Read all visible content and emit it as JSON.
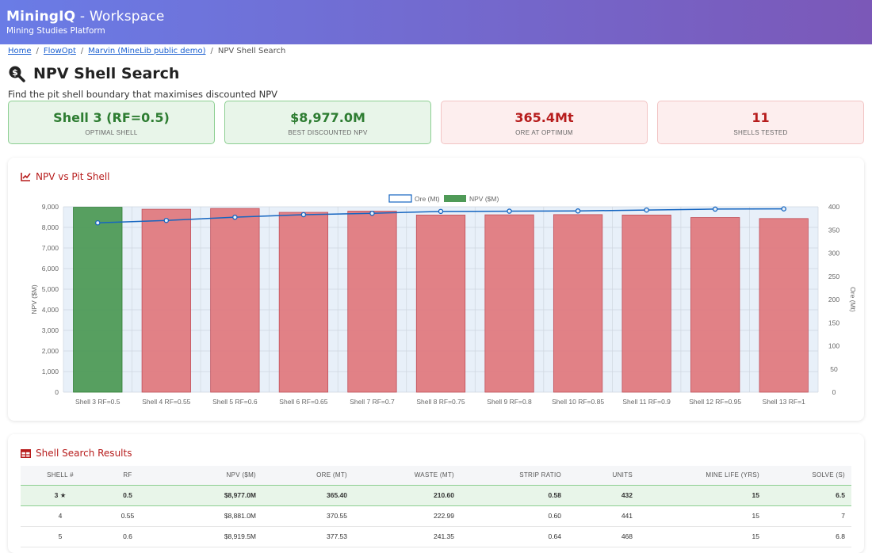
{
  "app": {
    "title_bold": "MiningIQ",
    "title_rest": " - Workspace",
    "subtitle": "Mining Studies Platform"
  },
  "breadcrumb": [
    "Home",
    "FlowOpt",
    "Marvin (MineLib public demo)",
    "NPV Shell Search"
  ],
  "page": {
    "title": "NPV Shell Search",
    "subtitle": "Find the pit shell boundary that maximises discounted NPV",
    "icon": "search-dollar-icon"
  },
  "kpis": [
    {
      "value": "Shell 3 (RF=0.5)",
      "label": "OPTIMAL SHELL",
      "tone": "green"
    },
    {
      "value": "$8,977.0M",
      "label": "BEST DISCOUNTED NPV",
      "tone": "green"
    },
    {
      "value": "365.4Mt",
      "label": "ORE AT OPTIMUM",
      "tone": "red"
    },
    {
      "value": "11",
      "label": "SHELLS TESTED",
      "tone": "red"
    }
  ],
  "chart_card": {
    "title": "NPV vs Pit Shell",
    "icon": "line-chart-icon"
  },
  "chart_data": {
    "type": "bar",
    "categories": [
      "Shell 3 RF=0.5",
      "Shell 4 RF=0.55",
      "Shell 5 RF=0.6",
      "Shell 6 RF=0.65",
      "Shell 7 RF=0.7",
      "Shell 8 RF=0.75",
      "Shell 9 RF=0.8",
      "Shell 10 RF=0.85",
      "Shell 11 RF=0.9",
      "Shell 12 RF=0.95",
      "Shell 13 RF=1"
    ],
    "series": [
      {
        "name": "NPV ($M)",
        "type": "bar",
        "axis": "left",
        "values": [
          8977.0,
          8881.0,
          8919.5,
          8730,
          8790,
          8600,
          8610,
          8620,
          8600,
          8480,
          8430
        ],
        "optimal_color": "#4f9a57",
        "color": "#e07a80"
      },
      {
        "name": "Ore (Mt)",
        "type": "line",
        "axis": "right",
        "values": [
          365.4,
          370.55,
          377.53,
          383,
          386,
          390,
          390.5,
          391,
          393,
          395,
          395.5
        ],
        "color": "#1565c0"
      }
    ],
    "y_left": {
      "label": "NPV ($M)",
      "min": 0,
      "max": 9000,
      "ticks": [
        "0",
        "1,000",
        "2,000",
        "3,000",
        "4,000",
        "5,000",
        "6,000",
        "7,000",
        "8,000",
        "9,000"
      ]
    },
    "y_right": {
      "label": "Ore (Mt)",
      "min": 0,
      "max": 400,
      "ticks": [
        "0",
        "50",
        "100",
        "150",
        "200",
        "250",
        "300",
        "350",
        "400"
      ]
    },
    "legend_position": "top-center",
    "grid": true
  },
  "table_card": {
    "title": "Shell Search Results",
    "icon": "table-icon"
  },
  "table": {
    "columns": [
      "SHELL #",
      "RF",
      "NPV ($M)",
      "ORE (MT)",
      "WASTE (MT)",
      "STRIP RATIO",
      "UNITS",
      "MINE LIFE (YRS)",
      "SOLVE (S)"
    ],
    "rows": [
      {
        "optimal": true,
        "cells": [
          "3 ★",
          "0.5",
          "$8,977.0M",
          "365.40",
          "210.60",
          "0.58",
          "432",
          "15",
          "6.5"
        ]
      },
      {
        "optimal": false,
        "cells": [
          "4",
          "0.55",
          "$8,881.0M",
          "370.55",
          "222.99",
          "0.60",
          "441",
          "15",
          "7"
        ]
      },
      {
        "optimal": false,
        "cells": [
          "5",
          "0.6",
          "$8,919.5M",
          "377.53",
          "241.35",
          "0.64",
          "468",
          "15",
          "6.8"
        ]
      }
    ]
  }
}
